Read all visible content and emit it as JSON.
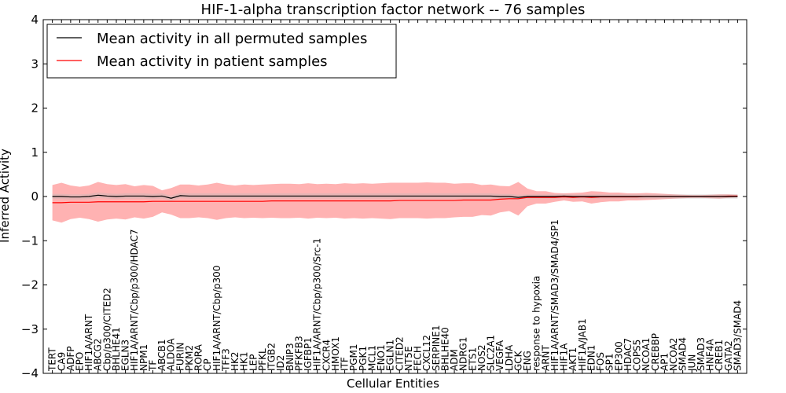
{
  "chart_data": {
    "type": "line",
    "title": "HIF-1-alpha transcription factor network -- 76 samples",
    "xlabel": "Cellular Entities",
    "ylabel": "Inferred Activity",
    "ylim": [
      -4,
      4
    ],
    "yticks": [
      -4,
      -3,
      -2,
      -1,
      0,
      1,
      2,
      3,
      4
    ],
    "grid": false,
    "legend_position": "top-left",
    "categories": [
      "TERT",
      "CA9",
      "ADFP",
      "EPO",
      "HIF1A/ARNT",
      "ABCG2",
      "Cbp/p300/CITED2",
      "BHLHE41",
      "EGLN3",
      "HIF1A/ARNT/Cbp/p300/HDAC7",
      "NPM1",
      "TF",
      "ABCB1",
      "ALDOA",
      "FURIN",
      "PKM2",
      "RORA",
      "CP",
      "HIF1A/ARNT/Cbp/p300",
      "TFF3",
      "HK2",
      "HK1",
      "LEP",
      "PFKL",
      "ITGB2",
      "ID2",
      "BNIP3",
      "PFKFB3",
      "IGFBP1",
      "HIF1A/ARNT/Cbp/p300/Src-1",
      "CXCR4",
      "HMOX1",
      "ITF",
      "PGM1",
      "PGK1",
      "MCL1",
      "ENO1",
      "EGLN1",
      "CITED2",
      "NT5E",
      "FECH",
      "CXCL12",
      "SERPINE1",
      "BHLHE40",
      "ADM",
      "NDRG1",
      "ETS1",
      "NOS2",
      "SLC2A1",
      "VEGFA",
      "LDHA",
      "GCK",
      "ENG",
      "response to hypoxia",
      "ARNT",
      "HIF1A/ARNT/SMAD3/SMAD4/SP1",
      "HIF1A",
      "AKT1",
      "HIF1A/JAB1",
      "EDN1",
      "FOS",
      "SP1",
      "EP300",
      "HDAC7",
      "COPS5",
      "NCOA1",
      "CREBBP",
      "AP1",
      "NCOA2",
      "SMAD4",
      "JUN",
      "SMAD3",
      "HNF4A",
      "CREB1",
      "GATA2",
      "SMAD3/SMAD4"
    ],
    "series": [
      {
        "name": "Mean activity in all permuted samples",
        "color": "#000000",
        "values": [
          0.0,
          0.0,
          -0.01,
          -0.01,
          0.0,
          0.03,
          0.01,
          0.0,
          0.01,
          0.01,
          0.01,
          0.0,
          0.01,
          -0.04,
          0.02,
          0.01,
          0.01,
          0.01,
          0.01,
          0.01,
          0.01,
          0.01,
          0.01,
          0.01,
          0.01,
          0.01,
          0.01,
          0.01,
          0.01,
          0.01,
          0.01,
          0.01,
          0.01,
          0.01,
          0.01,
          0.01,
          0.01,
          0.01,
          0.01,
          0.01,
          0.01,
          0.01,
          0.01,
          0.01,
          0.01,
          0.01,
          0.01,
          0.01,
          0.01,
          0.0,
          0.0,
          -0.02,
          0.0,
          0.0,
          0.0,
          0.0,
          0.01,
          0.0,
          0.0,
          0.0,
          0.0,
          0.0,
          0.0,
          0.0,
          0.0,
          0.0,
          0.0,
          0.0,
          0.0,
          0.0,
          0.0,
          0.0,
          0.0,
          0.0,
          0.0,
          0.0
        ],
        "band": [
          0.06,
          0.06,
          0.06,
          0.06,
          0.06,
          0.06,
          0.06,
          0.06,
          0.06,
          0.06,
          0.06,
          0.06,
          0.06,
          0.06,
          0.06,
          0.06,
          0.06,
          0.06,
          0.06,
          0.06,
          0.06,
          0.06,
          0.06,
          0.06,
          0.06,
          0.06,
          0.06,
          0.06,
          0.06,
          0.06,
          0.06,
          0.06,
          0.06,
          0.06,
          0.06,
          0.06,
          0.06,
          0.06,
          0.06,
          0.06,
          0.06,
          0.06,
          0.06,
          0.06,
          0.06,
          0.06,
          0.06,
          0.06,
          0.06,
          0.06,
          0.06,
          0.06,
          0.05,
          0.05,
          0.05,
          0.05,
          0.05,
          0.05,
          0.05,
          0.05,
          0.05,
          0.05,
          0.05,
          0.05,
          0.05,
          0.05,
          0.05,
          0.05,
          0.05,
          0.05,
          0.05,
          0.05,
          0.05,
          0.05,
          0.05,
          0.05
        ]
      },
      {
        "name": "Mean activity in patient samples",
        "color": "#ff0000",
        "values": [
          -0.14,
          -0.14,
          -0.13,
          -0.13,
          -0.13,
          -0.12,
          -0.12,
          -0.12,
          -0.12,
          -0.12,
          -0.12,
          -0.11,
          -0.11,
          -0.11,
          -0.11,
          -0.11,
          -0.11,
          -0.11,
          -0.11,
          -0.11,
          -0.11,
          -0.11,
          -0.11,
          -0.11,
          -0.1,
          -0.1,
          -0.1,
          -0.1,
          -0.1,
          -0.1,
          -0.1,
          -0.1,
          -0.1,
          -0.1,
          -0.1,
          -0.1,
          -0.1,
          -0.1,
          -0.09,
          -0.09,
          -0.09,
          -0.09,
          -0.09,
          -0.09,
          -0.09,
          -0.08,
          -0.08,
          -0.08,
          -0.08,
          -0.06,
          -0.05,
          -0.05,
          -0.02,
          -0.02,
          -0.02,
          -0.02,
          -0.01,
          -0.02,
          -0.01,
          -0.02,
          -0.01,
          -0.01,
          -0.01,
          -0.01,
          -0.01,
          0.0,
          0.0,
          0.0,
          0.0,
          0.0,
          0.0,
          0.0,
          0.0,
          0.0,
          0.01,
          0.01
        ],
        "band": [
          0.4,
          0.45,
          0.38,
          0.35,
          0.38,
          0.45,
          0.4,
          0.38,
          0.4,
          0.35,
          0.38,
          0.35,
          0.25,
          0.3,
          0.38,
          0.38,
          0.36,
          0.38,
          0.42,
          0.38,
          0.36,
          0.38,
          0.37,
          0.38,
          0.38,
          0.39,
          0.39,
          0.38,
          0.4,
          0.38,
          0.39,
          0.38,
          0.4,
          0.39,
          0.4,
          0.39,
          0.4,
          0.41,
          0.4,
          0.4,
          0.4,
          0.41,
          0.4,
          0.4,
          0.38,
          0.38,
          0.38,
          0.34,
          0.35,
          0.3,
          0.28,
          0.38,
          0.2,
          0.14,
          0.14,
          0.1,
          0.08,
          0.1,
          0.1,
          0.14,
          0.12,
          0.1,
          0.1,
          0.08,
          0.08,
          0.08,
          0.07,
          0.06,
          0.05,
          0.04,
          0.03,
          0.03,
          0.04,
          0.05,
          0.04,
          0.03
        ]
      }
    ]
  }
}
